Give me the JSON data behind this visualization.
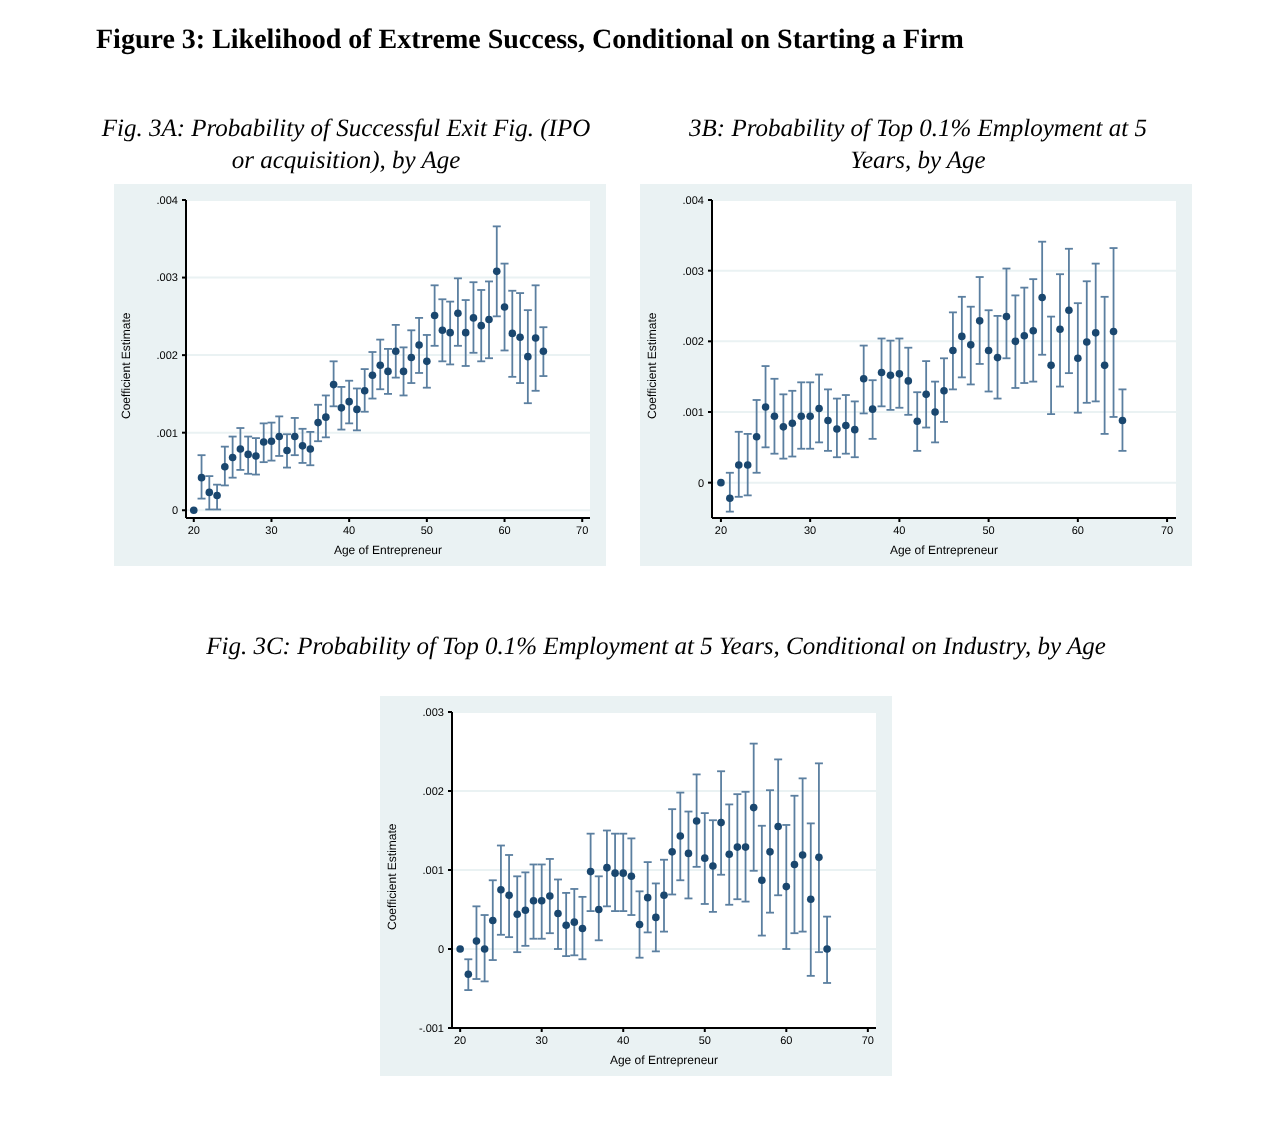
{
  "chart_data": [
    {
      "type": "scatter",
      "title": "Fig. 3A: Probability of Successful Exit Fig. (IPO or acquisition), by Age",
      "annotations": [
        "Figure 3: Likelihood of Extreme Success, Conditional on Starting a Firm"
      ],
      "xlabel": "Age of Entrepreneur",
      "ylabel": "Coefficient Estimate",
      "color": "#1a476f",
      "marker": "circle",
      "grid": "y",
      "x": [
        20,
        21,
        22,
        23,
        24,
        25,
        26,
        27,
        28,
        29,
        30,
        31,
        32,
        33,
        34,
        35,
        36,
        37,
        38,
        39,
        40,
        41,
        42,
        43,
        44,
        45,
        46,
        47,
        48,
        49,
        50,
        51,
        52,
        53,
        54,
        55,
        56,
        57,
        58,
        59,
        60,
        61,
        62,
        63,
        64,
        65
      ],
      "values": [
        0,
        0.00042,
        0.00023,
        0.00019,
        0.00056,
        0.00068,
        0.00079,
        0.00072,
        0.0007,
        0.00088,
        0.00089,
        0.00095,
        0.00077,
        0.00095,
        0.00083,
        0.00079,
        0.00113,
        0.0012,
        0.00162,
        0.00132,
        0.0014,
        0.0013,
        0.00154,
        0.00174,
        0.00187,
        0.00179,
        0.00205,
        0.00179,
        0.00197,
        0.00213,
        0.00192,
        0.00251,
        0.00232,
        0.00229,
        0.00254,
        0.00229,
        0.00248,
        0.00238,
        0.00246,
        0.00308,
        0.00262,
        0.00228,
        0.00223,
        0.00198,
        0.00222,
        0.00205
      ],
      "errors": [
        null,
        [
          0.00015,
          0.00071
        ],
        [
          1e-05,
          0.00044
        ],
        [
          1e-05,
          0.00033
        ],
        [
          0.00032,
          0.00082
        ],
        [
          0.00042,
          0.00095
        ],
        [
          0.00052,
          0.00106
        ],
        [
          0.00047,
          0.00095
        ],
        [
          0.00046,
          0.00093
        ],
        [
          0.00062,
          0.00112
        ],
        [
          0.00064,
          0.00113
        ],
        [
          0.0007,
          0.00121
        ],
        [
          0.00055,
          0.00098
        ],
        [
          0.00071,
          0.00119
        ],
        [
          0.00061,
          0.00105
        ],
        [
          0.00058,
          0.00101
        ],
        [
          0.00089,
          0.00136
        ],
        [
          0.00094,
          0.00148
        ],
        [
          0.00134,
          0.00192
        ],
        [
          0.00104,
          0.00159
        ],
        [
          0.00112,
          0.00167
        ],
        [
          0.00103,
          0.00157
        ],
        [
          0.00127,
          0.00182
        ],
        [
          0.00144,
          0.00204
        ],
        [
          0.00156,
          0.0022
        ],
        [
          0.0015,
          0.00208
        ],
        [
          0.00171,
          0.00239
        ],
        [
          0.00148,
          0.0021
        ],
        [
          0.00164,
          0.00232
        ],
        [
          0.00177,
          0.00248
        ],
        [
          0.00158,
          0.00226
        ],
        [
          0.00212,
          0.0029
        ],
        [
          0.00192,
          0.00272
        ],
        [
          0.00188,
          0.00269
        ],
        [
          0.00212,
          0.00299
        ],
        [
          0.00186,
          0.00271
        ],
        [
          0.00203,
          0.00294
        ],
        [
          0.00192,
          0.00284
        ],
        [
          0.00196,
          0.00295
        ],
        [
          0.0025,
          0.00366
        ],
        [
          0.00206,
          0.00318
        ],
        [
          0.00172,
          0.00283
        ],
        [
          0.00164,
          0.0028
        ],
        [
          0.00138,
          0.00258
        ],
        [
          0.00154,
          0.0029
        ],
        [
          0.00173,
          0.00236
        ]
      ],
      "xlim": [
        19,
        71
      ],
      "xticks": [
        20,
        30,
        40,
        50,
        60,
        70
      ],
      "ylim": [
        -0.0001,
        0.004
      ],
      "yticks": [
        {
          "value": 0,
          "label": "0"
        },
        {
          "value": 0.001,
          "label": ".001"
        },
        {
          "value": 0.002,
          "label": ".002"
        },
        {
          "value": 0.003,
          "label": ".003"
        },
        {
          "value": 0.004,
          "label": ".004"
        }
      ]
    },
    {
      "type": "scatter",
      "title": "3B: Probability of Top 0.1% Employment at 5 Years, by Age",
      "xlabel": "Age of Entrepreneur",
      "ylabel": "Coefficient Estimate",
      "color": "#1a476f",
      "marker": "circle",
      "grid": "y",
      "x": [
        20,
        21,
        22,
        23,
        24,
        25,
        26,
        27,
        28,
        29,
        30,
        31,
        32,
        33,
        34,
        35,
        36,
        37,
        38,
        39,
        40,
        41,
        42,
        43,
        44,
        45,
        46,
        47,
        48,
        49,
        50,
        51,
        52,
        53,
        54,
        55,
        56,
        57,
        58,
        59,
        60,
        61,
        62,
        63,
        64,
        65
      ],
      "values": [
        0,
        -0.00022,
        0.00025,
        0.00025,
        0.00065,
        0.00107,
        0.00094,
        0.00079,
        0.00084,
        0.00094,
        0.00094,
        0.00105,
        0.00088,
        0.00076,
        0.00081,
        0.00075,
        0.00147,
        0.00104,
        0.00156,
        0.00152,
        0.00154,
        0.00144,
        0.00087,
        0.00125,
        0.001,
        0.0013,
        0.00187,
        0.00207,
        0.00195,
        0.00229,
        0.00187,
        0.00177,
        0.00235,
        0.002,
        0.00208,
        0.00215,
        0.00262,
        0.00166,
        0.00217,
        0.00244,
        0.00176,
        0.00199,
        0.00212,
        0.00166,
        0.00214,
        0.00088
      ],
      "errors": [
        null,
        [
          -0.00041,
          0.00014
        ],
        [
          -0.0002,
          0.00072
        ],
        [
          -0.00018,
          0.00069
        ],
        [
          0.00014,
          0.00117
        ],
        [
          0.0005,
          0.00165
        ],
        [
          0.00041,
          0.00147
        ],
        [
          0.00034,
          0.00125
        ],
        [
          0.00037,
          0.0013
        ],
        [
          0.00048,
          0.00142
        ],
        [
          0.00048,
          0.00142
        ],
        [
          0.00057,
          0.00153
        ],
        [
          0.00045,
          0.00132
        ],
        [
          0.00036,
          0.00119
        ],
        [
          0.00041,
          0.00124
        ],
        [
          0.00036,
          0.00115
        ],
        [
          0.00098,
          0.00194
        ],
        [
          0.00062,
          0.00145
        ],
        [
          0.00108,
          0.00204
        ],
        [
          0.00103,
          0.00201
        ],
        [
          0.00106,
          0.00204
        ],
        [
          0.00096,
          0.00191
        ],
        [
          0.00045,
          0.00128
        ],
        [
          0.00078,
          0.00172
        ],
        [
          0.00057,
          0.00143
        ],
        [
          0.00086,
          0.00176
        ],
        [
          0.00132,
          0.00241
        ],
        [
          0.00149,
          0.00263
        ],
        [
          0.00139,
          0.00249
        ],
        [
          0.00168,
          0.00291
        ],
        [
          0.00129,
          0.00244
        ],
        [
          0.00119,
          0.00236
        ],
        [
          0.00176,
          0.00303
        ],
        [
          0.00134,
          0.00265
        ],
        [
          0.00141,
          0.00276
        ],
        [
          0.00143,
          0.00288
        ],
        [
          0.00181,
          0.00341
        ],
        [
          0.00097,
          0.00235
        ],
        [
          0.00136,
          0.00295
        ],
        [
          0.00155,
          0.00331
        ],
        [
          0.00099,
          0.00254
        ],
        [
          0.00113,
          0.00285
        ],
        [
          0.00115,
          0.0031
        ],
        [
          0.00069,
          0.00263
        ],
        [
          0.00093,
          0.00332
        ],
        [
          0.00045,
          0.00132
        ]
      ],
      "xlim": [
        19,
        71
      ],
      "xticks": [
        20,
        30,
        40,
        50,
        60,
        70
      ],
      "ylim": [
        -0.0005,
        0.004
      ],
      "yticks": [
        {
          "value": 0,
          "label": "0"
        },
        {
          "value": 0.001,
          "label": ".001"
        },
        {
          "value": 0.002,
          "label": ".002"
        },
        {
          "value": 0.003,
          "label": ".003"
        },
        {
          "value": 0.004,
          "label": ".004"
        }
      ]
    },
    {
      "type": "scatter",
      "title": "Fig. 3C: Probability of Top 0.1% Employment at 5 Years, Conditional on Industry, by Age",
      "xlabel": "Age of Entrepreneur",
      "ylabel": "Coefficient Estimate",
      "color": "#1a476f",
      "marker": "circle",
      "grid": "y",
      "x": [
        20,
        21,
        22,
        23,
        24,
        25,
        26,
        27,
        28,
        29,
        30,
        31,
        32,
        33,
        34,
        35,
        36,
        37,
        38,
        39,
        40,
        41,
        42,
        43,
        44,
        45,
        46,
        47,
        48,
        49,
        50,
        51,
        52,
        53,
        54,
        55,
        56,
        57,
        58,
        59,
        60,
        61,
        62,
        63,
        64,
        65
      ],
      "values": [
        0,
        -0.00032,
        0.0001,
        0,
        0.00036,
        0.00075,
        0.00068,
        0.00044,
        0.00049,
        0.00061,
        0.00061,
        0.00067,
        0.00045,
        0.0003,
        0.00034,
        0.00026,
        0.00098,
        0.0005,
        0.00103,
        0.00096,
        0.00096,
        0.00092,
        0.00031,
        0.00065,
        0.0004,
        0.00068,
        0.00123,
        0.00143,
        0.00121,
        0.00162,
        0.00115,
        0.00105,
        0.0016,
        0.0012,
        0.00129,
        0.00129,
        0.00179,
        0.00087,
        0.00123,
        0.00155,
        0.00079,
        0.00107,
        0.00119,
        0.00063,
        0.00116,
        0
      ],
      "errors": [
        null,
        [
          -0.00052,
          -0.00013
        ],
        [
          -0.00038,
          0.00054
        ],
        [
          -0.00041,
          0.00043
        ],
        [
          -0.00014,
          0.00087
        ],
        [
          0.00018,
          0.00131
        ],
        [
          0.00015,
          0.00119
        ],
        [
          -4e-05,
          0.00092
        ],
        [
          4e-05,
          0.00097
        ],
        [
          0.00013,
          0.00107
        ],
        [
          0.00013,
          0.00107
        ],
        [
          0.0002,
          0.00114
        ],
        [
          0,
          0.00088
        ],
        [
          -9e-05,
          0.00071
        ],
        [
          -8e-05,
          0.00076
        ],
        [
          -0.00013,
          0.00066
        ],
        [
          0.00048,
          0.00146
        ],
        [
          0.00011,
          0.00092
        ],
        [
          0.00054,
          0.0015
        ],
        [
          0.00048,
          0.00146
        ],
        [
          0.00048,
          0.00146
        ],
        [
          0.00043,
          0.0014
        ],
        [
          -0.00011,
          0.00073
        ],
        [
          0.00021,
          0.0011
        ],
        [
          -3e-05,
          0.00083
        ],
        [
          0.00022,
          0.00113
        ],
        [
          0.00069,
          0.00177
        ],
        [
          0.00087,
          0.00198
        ],
        [
          0.00064,
          0.00174
        ],
        [
          0.00104,
          0.00221
        ],
        [
          0.00057,
          0.00172
        ],
        [
          0.00047,
          0.00163
        ],
        [
          0.00094,
          0.00225
        ],
        [
          0.00056,
          0.00183
        ],
        [
          0.00063,
          0.00196
        ],
        [
          0.0006,
          0.00199
        ],
        [
          0.00099,
          0.0026
        ],
        [
          0.00017,
          0.00156
        ],
        [
          0.00046,
          0.00201
        ],
        [
          0.00068,
          0.0024
        ],
        [
          0,
          0.00157
        ],
        [
          0.0002,
          0.00194
        ],
        [
          0.00022,
          0.00216
        ],
        [
          -0.00034,
          0.00159
        ],
        [
          -4e-05,
          0.00235
        ],
        [
          -0.00043,
          0.00041
        ]
      ],
      "xlim": [
        19,
        71
      ],
      "xticks": [
        20,
        30,
        40,
        50,
        60,
        70
      ],
      "ylim": [
        -0.001,
        0.003
      ],
      "yticks": [
        {
          "value": -0.001,
          "label": "-.001"
        },
        {
          "value": 0,
          "label": "0"
        },
        {
          "value": 0.001,
          "label": ".001"
        },
        {
          "value": 0.002,
          "label": ".002"
        },
        {
          "value": 0.003,
          "label": ".003"
        }
      ]
    }
  ]
}
